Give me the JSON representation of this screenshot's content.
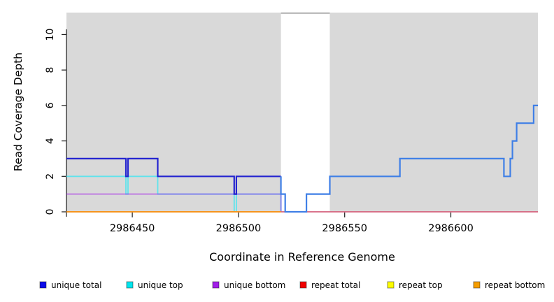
{
  "colors": {
    "page_bg": "#ffffff",
    "plot_bg": "#d9d9d9",
    "gap_top_border": "#8f8f8f",
    "axis": "#1a1a1a",
    "unique_total_left": "#2424d0",
    "unique_total_right": "#3f7fe6",
    "unique_top": "#5fe3ec",
    "unique_bottom": "rgba(162,31,234,0.42)",
    "repeat_total_line": "#d4607c",
    "repeat_bottom_line": "#f5941e"
  },
  "chart_data": {
    "type": "line",
    "subtype": "step-coverage",
    "title": "",
    "xlabel": "Coordinate in Reference Genome",
    "ylabel": "Read Coverage Depth",
    "xlim": [
      2986419,
      2986641
    ],
    "ylim": [
      0,
      11.24
    ],
    "xticks": [
      2986450,
      2986500,
      2986550,
      2986600
    ],
    "yticks": [
      0,
      2,
      4,
      6,
      8,
      10
    ],
    "grid": false,
    "legend_position": "bottom",
    "shaded_regions": [
      {
        "x0": 2986419,
        "x1": 2986520
      },
      {
        "x0": 2986543,
        "x1": 2986641
      }
    ],
    "uncovered_gap": {
      "x0": 2986520,
      "x1": 2986543
    },
    "series": [
      {
        "id": "unique-top",
        "name": "unique top",
        "color": "#5fe3ec",
        "width": 1.8,
        "points": [
          [
            2986419,
            2
          ],
          [
            2986447,
            2
          ],
          [
            2986447,
            1
          ],
          [
            2986448,
            1
          ],
          [
            2986448,
            2
          ],
          [
            2986462,
            2
          ],
          [
            2986462,
            1
          ],
          [
            2986498,
            1
          ],
          [
            2986498,
            0
          ],
          [
            2986499,
            0
          ],
          [
            2986499,
            1
          ],
          [
            2986520,
            1
          ],
          [
            2986520,
            0
          ]
        ]
      },
      {
        "id": "unique-bottom",
        "name": "unique bottom",
        "color": "rgba(162,31,234,0.42)",
        "width": 2.2,
        "points": [
          [
            2986419,
            1
          ],
          [
            2986520,
            1
          ],
          [
            2986520,
            0
          ]
        ]
      },
      {
        "id": "repeat-total",
        "name": "repeat total",
        "color": "#d4607c",
        "width": 1.8,
        "points": [
          [
            2986520,
            0
          ],
          [
            2986641,
            0
          ]
        ]
      },
      {
        "id": "repeat-top",
        "name": "repeat top",
        "color": "#fcfc00",
        "width": 1.8,
        "points": []
      },
      {
        "id": "repeat-bottom",
        "name": "repeat bottom",
        "color": "#f5941e",
        "width": 2,
        "points": [
          [
            2986419,
            0
          ],
          [
            2986520,
            0
          ]
        ]
      },
      {
        "id": "unique-total-left",
        "name": "unique total",
        "color": "#2424d0",
        "width": 2.2,
        "points": [
          [
            2986419,
            3
          ],
          [
            2986447,
            3
          ],
          [
            2986447,
            2
          ],
          [
            2986448,
            2
          ],
          [
            2986448,
            3
          ],
          [
            2986462,
            3
          ],
          [
            2986462,
            2
          ],
          [
            2986498,
            2
          ],
          [
            2986498,
            1
          ],
          [
            2986499,
            1
          ],
          [
            2986499,
            2
          ],
          [
            2986520,
            2
          ]
        ]
      },
      {
        "id": "unique-total-right",
        "name": "unique total",
        "color": "#3f7fe6",
        "width": 2.2,
        "points": [
          [
            2986520,
            2
          ],
          [
            2986520,
            1
          ],
          [
            2986522,
            1
          ],
          [
            2986522,
            0
          ],
          [
            2986532,
            0
          ],
          [
            2986532,
            1
          ],
          [
            2986543,
            1
          ],
          [
            2986543,
            2
          ],
          [
            2986576,
            2
          ],
          [
            2986576,
            3
          ],
          [
            2986625,
            3
          ],
          [
            2986625,
            2
          ],
          [
            2986628,
            2
          ],
          [
            2986628,
            3
          ],
          [
            2986629,
            3
          ],
          [
            2986629,
            4
          ],
          [
            2986631,
            4
          ],
          [
            2986631,
            5
          ],
          [
            2986639,
            5
          ],
          [
            2986639,
            6
          ],
          [
            2986641,
            6
          ]
        ]
      }
    ],
    "legend": [
      {
        "label": "unique total",
        "color": "#0b0bea"
      },
      {
        "label": "unique top",
        "color": "#00e5ee"
      },
      {
        "label": "unique bottom",
        "color": "#a21fe8"
      },
      {
        "label": "repeat total",
        "color": "#f10000"
      },
      {
        "label": "repeat top",
        "color": "#fcfc00"
      },
      {
        "label": "repeat bottom",
        "color": "#f59d00"
      }
    ]
  }
}
